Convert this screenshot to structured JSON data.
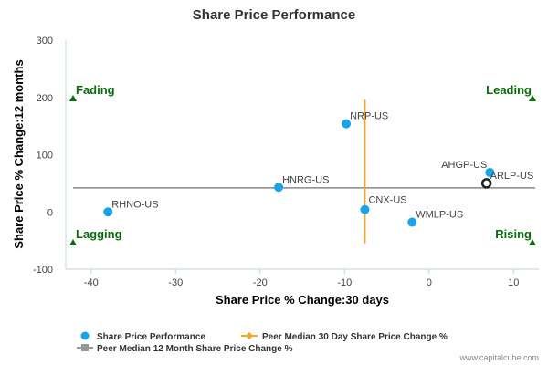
{
  "chart_data": {
    "type": "scatter",
    "title": "Share Price Performance",
    "xlabel": "Share Price % Change:30 days",
    "ylabel": "Share Price % Change:12 months",
    "xlim": [
      -43,
      13
    ],
    "ylim": [
      -100,
      300
    ],
    "x_ticks": [
      -40,
      -30,
      -20,
      -10,
      0,
      10
    ],
    "y_ticks": [
      -100,
      0,
      100,
      200,
      300
    ],
    "grid": false,
    "points": [
      {
        "label": "NRP-US",
        "x": -9.8,
        "y": 154
      },
      {
        "label": "HNRG-US",
        "x": -17.8,
        "y": 43
      },
      {
        "label": "RHNO-US",
        "x": -38,
        "y": 0
      },
      {
        "label": "CNX-US",
        "x": -7.6,
        "y": 4
      },
      {
        "label": "WMLP-US",
        "x": -2,
        "y": -18
      },
      {
        "label": "AHGP-US",
        "x": 7.2,
        "y": 69
      },
      {
        "label": "ARLP-US",
        "x": 6.8,
        "y": 50
      }
    ],
    "highlight_point": "ARLP-US",
    "peer_median_30d": -7.6,
    "peer_median_30d_range": [
      -55,
      196
    ],
    "peer_median_12m": 42,
    "quadrants": {
      "top_left": "Fading",
      "top_right": "Leading",
      "bottom_left": "Lagging",
      "bottom_right": "Rising"
    },
    "legend": [
      {
        "name": "Share Price Performance",
        "marker": "circle",
        "color": "#1aa3e8"
      },
      {
        "name": "Peer Median 30 Day Share Price Change %",
        "marker": "diamond-line",
        "color": "#f5a623"
      },
      {
        "name": "Peer Median 12 Month Share Price Change %",
        "marker": "square-line",
        "color": "#999999"
      }
    ],
    "legend_position": "bottom-left",
    "colors": {
      "points": "#1aa3e8",
      "vertical_median": "#f5a623",
      "horizontal_median": "#888888",
      "quadrant_text": "#0a6b0a"
    }
  },
  "credit": "www.capitalcube.com"
}
